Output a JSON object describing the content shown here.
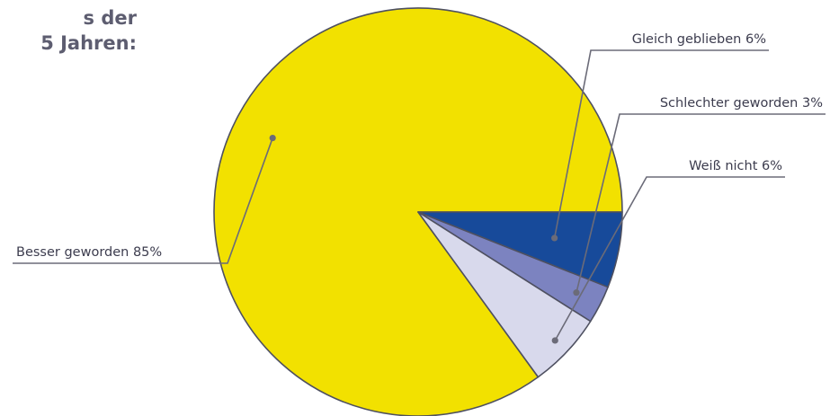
{
  "title_lines": [
    "s der",
    "5 Jahren:"
  ],
  "chart_data": {
    "type": "pie",
    "slices": [
      {
        "label": "Besser geworden 85%",
        "value": 85,
        "color": "#f2e100"
      },
      {
        "label": "Gleich geblieben 6%",
        "value": 6,
        "color": "#174a9a"
      },
      {
        "label": "Schlechter geworden 3%",
        "value": 3,
        "color": "#7c83c0"
      },
      {
        "label": "Weiß nicht 6%",
        "value": 6,
        "color": "#d8d9ec"
      }
    ],
    "outline_color": "#4e5060",
    "leader_color": "#6b6b78"
  }
}
